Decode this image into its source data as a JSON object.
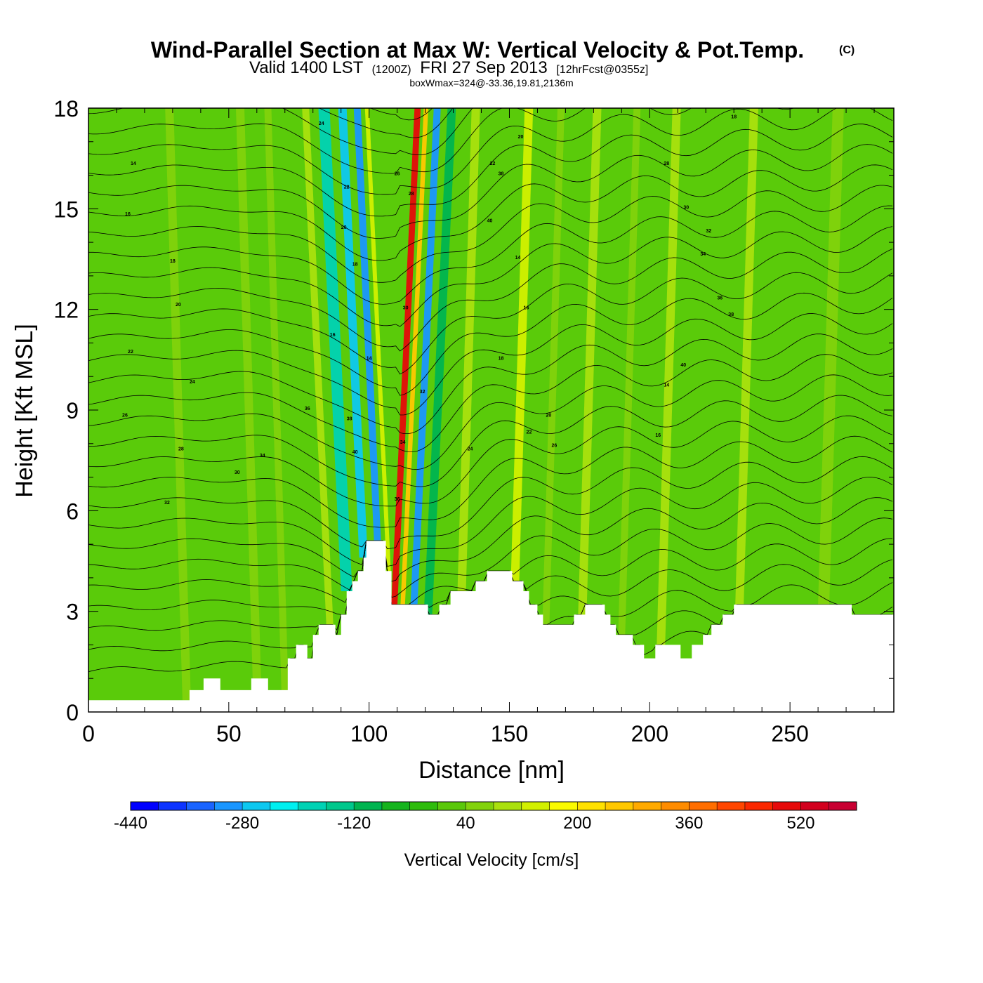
{
  "header": {
    "title_main": "Wind-Parallel Section at Max W: Vertical Velocity & Pot.Temp.",
    "title_mark": "(C)",
    "sub_valid": "Valid 1400 LST",
    "sub_utc": "(1200Z)",
    "sub_date": "FRI 27 Sep 2013",
    "sub_fcst": "[12hrFcst@0355z]",
    "sub_box": "boxWmax=324@-33.36,19.81,2136m"
  },
  "chart_data": {
    "type": "heatmap",
    "xlabel": "Distance [nm]",
    "ylabel": "Height [Kft MSL]",
    "xlim": [
      0,
      287
    ],
    "ylim": [
      0,
      18
    ],
    "x_ticks": [
      "0",
      "50",
      "100",
      "150",
      "200",
      "250"
    ],
    "y_ticks": [
      "0",
      "3",
      "6",
      "9",
      "12",
      "15",
      "18"
    ],
    "colorbar": {
      "title": "Vertical Velocity [cm/s]",
      "range": [
        -440,
        600
      ],
      "labels": [
        "-440",
        "-280",
        "-120",
        "40",
        "200",
        "360",
        "520"
      ],
      "colors": [
        "#0000ff",
        "#0d34ff",
        "#1a64ff",
        "#1a96ff",
        "#0dc8f0",
        "#00f0f0",
        "#00d2b4",
        "#00c88c",
        "#00b450",
        "#16b41e",
        "#2ebc0c",
        "#5ac80a",
        "#82d20c",
        "#aae00e",
        "#d2f000",
        "#fafa00",
        "#ffe100",
        "#ffc800",
        "#ffaa00",
        "#ff8c00",
        "#ff6e00",
        "#ff4600",
        "#fa2800",
        "#e60a0a",
        "#d2001e",
        "#c80032"
      ]
    },
    "terrain_kft": [
      [
        0,
        0.35
      ],
      [
        36,
        0.35
      ],
      [
        36,
        0.65
      ],
      [
        41,
        0.65
      ],
      [
        41,
        1.0
      ],
      [
        47,
        1.0
      ],
      [
        47,
        0.65
      ],
      [
        58,
        0.65
      ],
      [
        58,
        1.0
      ],
      [
        64,
        1.0
      ],
      [
        64,
        0.65
      ],
      [
        71,
        0.65
      ],
      [
        71,
        1.6
      ],
      [
        74,
        1.6
      ],
      [
        74,
        2.0
      ],
      [
        78,
        2.0
      ],
      [
        78,
        1.6
      ],
      [
        80,
        1.6
      ],
      [
        80,
        2.3
      ],
      [
        82,
        2.3
      ],
      [
        82,
        2.6
      ],
      [
        88,
        2.6
      ],
      [
        88,
        2.3
      ],
      [
        90,
        2.3
      ],
      [
        90,
        2.9
      ],
      [
        92,
        2.9
      ],
      [
        92,
        3.6
      ],
      [
        94,
        3.6
      ],
      [
        94,
        3.9
      ],
      [
        96,
        3.9
      ],
      [
        96,
        4.2
      ],
      [
        98,
        4.2
      ],
      [
        98,
        4.6
      ],
      [
        99,
        4.6
      ],
      [
        99,
        5.1
      ],
      [
        106,
        5.1
      ],
      [
        106,
        4.2
      ],
      [
        108,
        4.2
      ],
      [
        108,
        3.2
      ],
      [
        121,
        3.2
      ],
      [
        121,
        2.9
      ],
      [
        125,
        2.9
      ],
      [
        125,
        3.2
      ],
      [
        129,
        3.2
      ],
      [
        129,
        3.6
      ],
      [
        138,
        3.6
      ],
      [
        138,
        3.9
      ],
      [
        142,
        3.9
      ],
      [
        142,
        4.2
      ],
      [
        151,
        4.2
      ],
      [
        151,
        3.9
      ],
      [
        155,
        3.9
      ],
      [
        155,
        3.6
      ],
      [
        157,
        3.6
      ],
      [
        157,
        3.2
      ],
      [
        160,
        3.2
      ],
      [
        160,
        2.9
      ],
      [
        162,
        2.9
      ],
      [
        162,
        2.6
      ],
      [
        173,
        2.6
      ],
      [
        173,
        2.9
      ],
      [
        177,
        2.9
      ],
      [
        177,
        3.2
      ],
      [
        184,
        3.2
      ],
      [
        184,
        2.9
      ],
      [
        186,
        2.9
      ],
      [
        186,
        2.6
      ],
      [
        188,
        2.6
      ],
      [
        188,
        2.3
      ],
      [
        194,
        2.3
      ],
      [
        194,
        2.0
      ],
      [
        198,
        2.0
      ],
      [
        198,
        1.6
      ],
      [
        202,
        1.6
      ],
      [
        202,
        2.0
      ],
      [
        211,
        2.0
      ],
      [
        211,
        1.6
      ],
      [
        215,
        1.6
      ],
      [
        215,
        2.0
      ],
      [
        219,
        2.0
      ],
      [
        219,
        2.3
      ],
      [
        222,
        2.3
      ],
      [
        222,
        2.6
      ],
      [
        226,
        2.6
      ],
      [
        226,
        2.9
      ],
      [
        230,
        2.9
      ],
      [
        230,
        3.2
      ],
      [
        272,
        3.2
      ],
      [
        272,
        2.9
      ],
      [
        287,
        2.9
      ]
    ],
    "w_bands": [
      {
        "x": 92,
        "w": 4,
        "v": -180
      },
      {
        "x": 98,
        "w": 3,
        "v": -250
      },
      {
        "x": 103,
        "w": 2.5,
        "v": -320
      },
      {
        "x": 107,
        "w": 1.5,
        "v": 140
      },
      {
        "x": 109,
        "w": 2.2,
        "v": 480
      },
      {
        "x": 112,
        "w": 1.6,
        "v": 240
      },
      {
        "x": 116,
        "w": 2.5,
        "v": -320
      },
      {
        "x": 121,
        "w": 3,
        "v": -100
      },
      {
        "x": 133,
        "w": 3,
        "v": 100
      },
      {
        "x": 86,
        "w": 2.5,
        "v": 90
      },
      {
        "x": 152,
        "w": 3,
        "v": 120
      },
      {
        "x": 163,
        "w": 2.5,
        "v": 60
      },
      {
        "x": 176,
        "w": 3,
        "v": 90
      },
      {
        "x": 190,
        "w": 2.5,
        "v": 70
      },
      {
        "x": 204,
        "w": 3,
        "v": 100
      },
      {
        "x": 232,
        "w": 3,
        "v": 80
      },
      {
        "x": 262,
        "w": 4,
        "v": 60
      },
      {
        "x": 35,
        "w": 3,
        "v": 70
      },
      {
        "x": 60,
        "w": 3,
        "v": 50
      },
      {
        "x": 70,
        "w": 2.5,
        "v": 60
      }
    ],
    "contour_label_values": [
      "14",
      "16",
      "18",
      "20",
      "22",
      "24",
      "26",
      "28",
      "30",
      "32",
      "34",
      "36",
      "38",
      "40"
    ]
  }
}
